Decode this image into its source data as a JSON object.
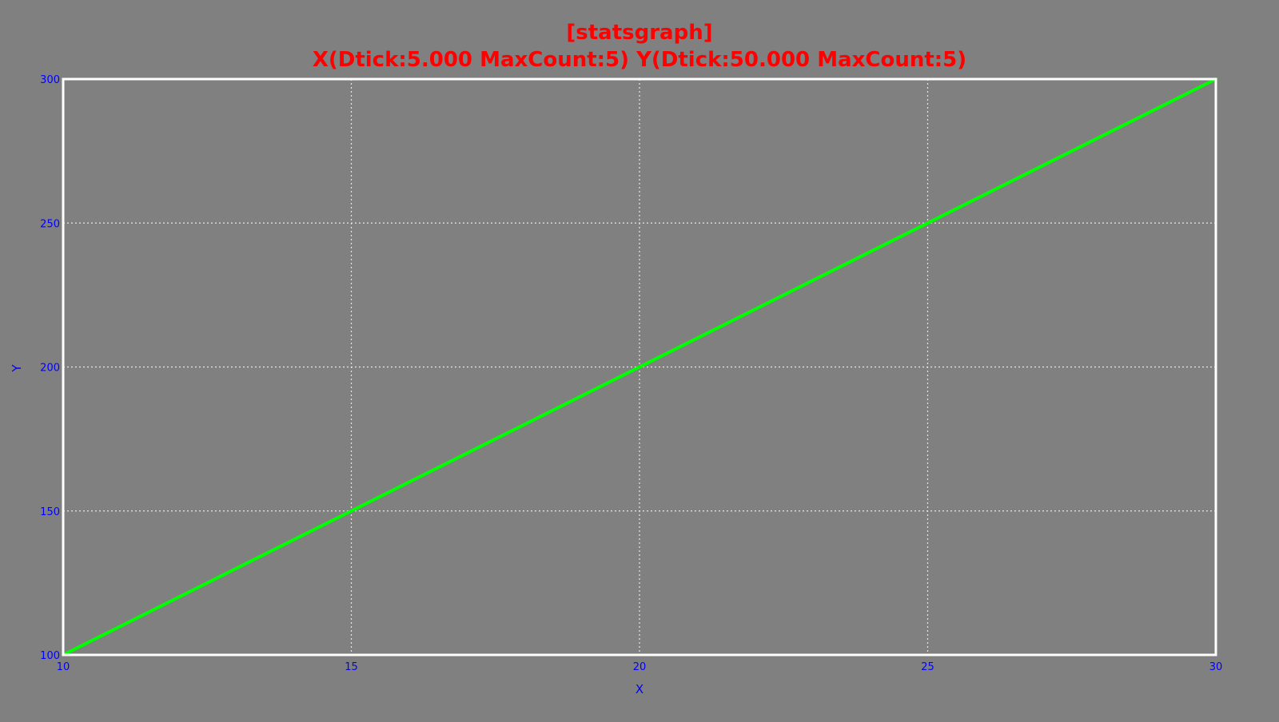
{
  "colors": {
    "background": "#808080",
    "title": "#ff0000",
    "axis_text": "#0000ff",
    "frame": "#ffffff",
    "grid": "#e6e6e6",
    "line": "#00ff00"
  },
  "chart_data": {
    "type": "line",
    "title": "[statsgraph]",
    "subtitle": "X(Dtick:5.000 MaxCount:5) Y(Dtick:50.000 MaxCount:5)",
    "xlabel": "X",
    "ylabel": "Y",
    "xlim": [
      10,
      30
    ],
    "ylim": [
      100,
      300
    ],
    "x_ticks": [
      "10",
      "15",
      "20",
      "25",
      "30"
    ],
    "y_ticks": [
      "100",
      "150",
      "200",
      "250",
      "300"
    ],
    "grid": true,
    "grid_style": "dotted",
    "legend": false,
    "series": [
      {
        "x": [
          10,
          30
        ],
        "y": [
          100,
          300
        ]
      }
    ]
  }
}
